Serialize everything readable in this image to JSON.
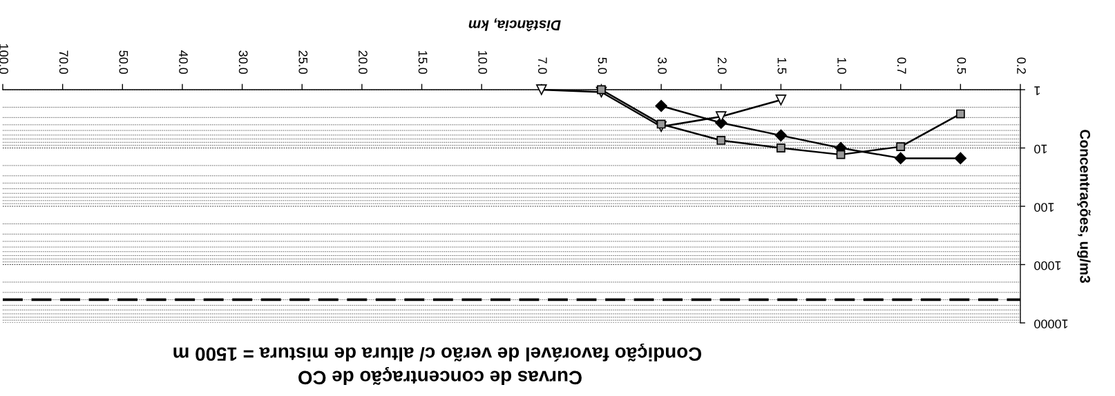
{
  "chart_data": {
    "type": "line",
    "title": "Curvas de concentração de CO",
    "subtitle": "Condição favorável de verão c/ altura de mistura = 1500 m",
    "xlabel": "Distância, km",
    "ylabel": "Concentrações, ug/m3",
    "categories": [
      "100.0",
      "70.0",
      "50.0",
      "40.0",
      "30.0",
      "25.0",
      "20.0",
      "15.0",
      "10.0",
      "7.0",
      "5.0",
      "3.0",
      "2.0",
      "1.5",
      "1.0",
      "0.7",
      "0.5",
      "0.2"
    ],
    "series": [
      {
        "color": "#000000",
        "marker": "diamond",
        "values": [
          null,
          null,
          null,
          null,
          null,
          null,
          null,
          null,
          null,
          null,
          null,
          1.9,
          3.7,
          6.1,
          10,
          15,
          15,
          null
        ]
      },
      {
        "color": "#000000",
        "marker": "triangle",
        "values": [
          null,
          null,
          null,
          null,
          null,
          null,
          null,
          null,
          null,
          1.0,
          1.1,
          4.3,
          2.9,
          1.5,
          null,
          null,
          null,
          null
        ]
      },
      {
        "color": "#000000",
        "marker": "square",
        "values": [
          null,
          null,
          null,
          null,
          null,
          null,
          null,
          null,
          null,
          null,
          1.0,
          3.9,
          7.4,
          10,
          13,
          9.5,
          2.6,
          null
        ]
      },
      {
        "color": "#000000",
        "marker": "none",
        "line_style": "dashed",
        "values": [
          4000,
          4000,
          4000,
          4000,
          4000,
          4000,
          4000,
          4000,
          4000,
          4000,
          4000,
          4000,
          4000,
          4000,
          4000,
          4000,
          4000,
          4000
        ]
      }
    ],
    "log": true,
    "ylim": [
      10000,
      1
    ],
    "yticks": [
      1,
      10,
      100,
      1000,
      10000
    ],
    "grid": "y",
    "line_style": "solid"
  }
}
